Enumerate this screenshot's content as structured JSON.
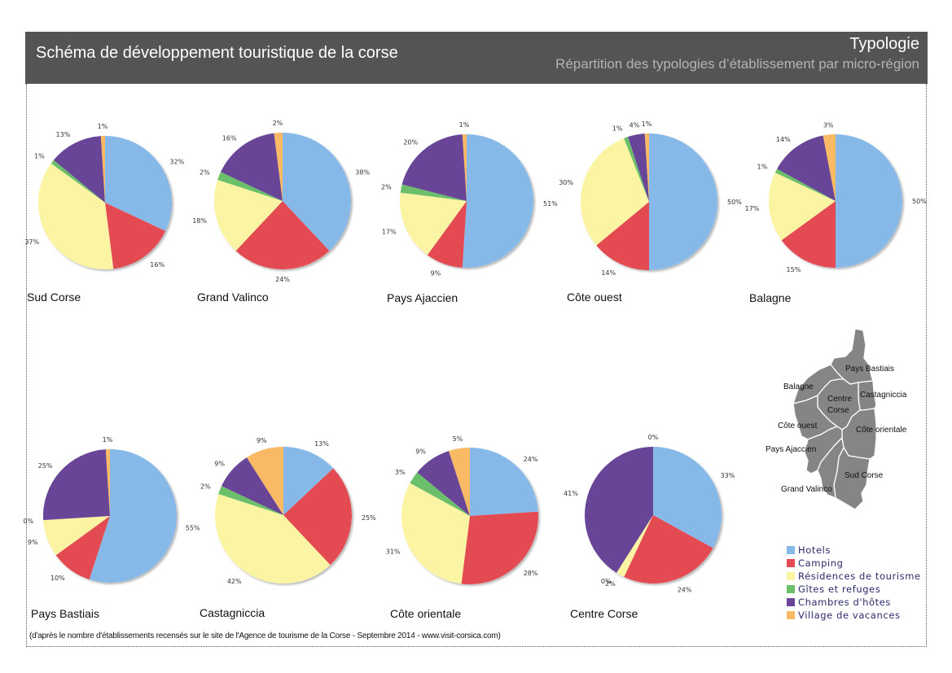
{
  "header": {
    "title": "Schéma de développement touristique de la corse",
    "subtitle": "Typologie",
    "subsubtitle": "Répartition des typologies d’établissement par micro-région"
  },
  "source_note": "(d'après le nombre d'établissements recensés sur le site de l'Agence de tourisme de la Corse - Septembre 2014 - www.visit-corsica.com)",
  "legend": [
    {
      "label": "Hotels",
      "color": "#86b9e8"
    },
    {
      "label": "Camping",
      "color": "#e44a52"
    },
    {
      "label": "Résidences de tourisme",
      "color": "#fbf4a3"
    },
    {
      "label": "Gîtes et refuges",
      "color": "#6cbf6a"
    },
    {
      "label": "Chambres d'hôtes",
      "color": "#684597"
    },
    {
      "label": "Village de vacances",
      "color": "#f9b965"
    }
  ],
  "map": {
    "labels": [
      "Pays Bastiais",
      "Balagne",
      "Centre Corse",
      "Castagniccia",
      "Côte ouest",
      "Côte orientale",
      "Pays Ajaccien",
      "Sud Corse",
      "Grand Valinco"
    ],
    "fill": "#858585"
  },
  "chart_data": [
    {
      "type": "pie",
      "title": "Sud Corse",
      "categories": [
        "Hotels",
        "Camping",
        "Résidences de tourisme",
        "Gîtes et refuges",
        "Chambres d'hôtes",
        "Village de vacances"
      ],
      "values": [
        32,
        16,
        37,
        1,
        13,
        1
      ],
      "labels": [
        "32%",
        "16%",
        "37%",
        "1%",
        "13%",
        "1%"
      ]
    },
    {
      "type": "pie",
      "title": "Grand Valinco",
      "categories": [
        "Hotels",
        "Camping",
        "Résidences de tourisme",
        "Gîtes et refuges",
        "Chambres d'hôtes",
        "Village de vacances"
      ],
      "values": [
        38,
        24,
        18,
        2,
        16,
        2
      ],
      "labels": [
        "38%",
        "24%",
        "18%",
        "2%",
        "16%",
        "2%"
      ]
    },
    {
      "type": "pie",
      "title": "Pays Ajaccien",
      "categories": [
        "Hotels",
        "Camping",
        "Résidences de tourisme",
        "Gîtes et refuges",
        "Chambres d'hôtes",
        "Village de vacances"
      ],
      "values": [
        51,
        9,
        17,
        2,
        20,
        1
      ],
      "labels": [
        "51%",
        "9%",
        "17%",
        "2%",
        "20%",
        "1%"
      ]
    },
    {
      "type": "pie",
      "title": "Côte ouest",
      "categories": [
        "Hotels",
        "Camping",
        "Résidences de tourisme",
        "Gîtes et refuges",
        "Chambres d'hôtes",
        "Village de vacances"
      ],
      "values": [
        50,
        14,
        30,
        1,
        4,
        1
      ],
      "labels": [
        "50%",
        "14%",
        "30%",
        "1%",
        "4%",
        "1%"
      ]
    },
    {
      "type": "pie",
      "title": "Balagne",
      "categories": [
        "Hotels",
        "Camping",
        "Résidences de tourisme",
        "Gîtes et refuges",
        "Chambres d'hôtes",
        "Village de vacances"
      ],
      "values": [
        50,
        15,
        17,
        1,
        14,
        3
      ],
      "labels": [
        "50%",
        "15%",
        "17%",
        "1%",
        "14%",
        "3%"
      ]
    },
    {
      "type": "pie",
      "title": "Pays Bastiais",
      "categories": [
        "Hotels",
        "Camping",
        "Résidences de tourisme",
        "Gîtes et refuges",
        "Chambres d'hôtes",
        "Village de vacances"
      ],
      "values": [
        55,
        10,
        9,
        0,
        25,
        1
      ],
      "labels": [
        "55%",
        "10%",
        "9%",
        "0%",
        "25%",
        "1%"
      ]
    },
    {
      "type": "pie",
      "title": "Castagniccia",
      "categories": [
        "Hotels",
        "Camping",
        "Résidences de tourisme",
        "Gîtes et refuges",
        "Chambres d'hôtes",
        "Village de vacances"
      ],
      "values": [
        13,
        25,
        42,
        2,
        9,
        9
      ],
      "labels": [
        "13%",
        "25%",
        "42%",
        "2%",
        "9%",
        "9%"
      ]
    },
    {
      "type": "pie",
      "title": "Côte orientale",
      "categories": [
        "Hotels",
        "Camping",
        "Résidences de tourisme",
        "Gîtes et refuges",
        "Chambres d'hôtes",
        "Village de vacances"
      ],
      "values": [
        24,
        28,
        31,
        3,
        9,
        5
      ],
      "labels": [
        "24%",
        "28%",
        "31%",
        "3%",
        "9%",
        "5%"
      ]
    },
    {
      "type": "pie",
      "title": "Centre Corse",
      "categories": [
        "Hotels",
        "Camping",
        "Résidences de tourisme",
        "Gîtes et refuges",
        "Chambres d'hôtes",
        "Village de vacances"
      ],
      "values": [
        33,
        24,
        2,
        0,
        41,
        0
      ],
      "labels": [
        "33%",
        "24%",
        "2%",
        "0%",
        "41%",
        "0%"
      ]
    }
  ]
}
